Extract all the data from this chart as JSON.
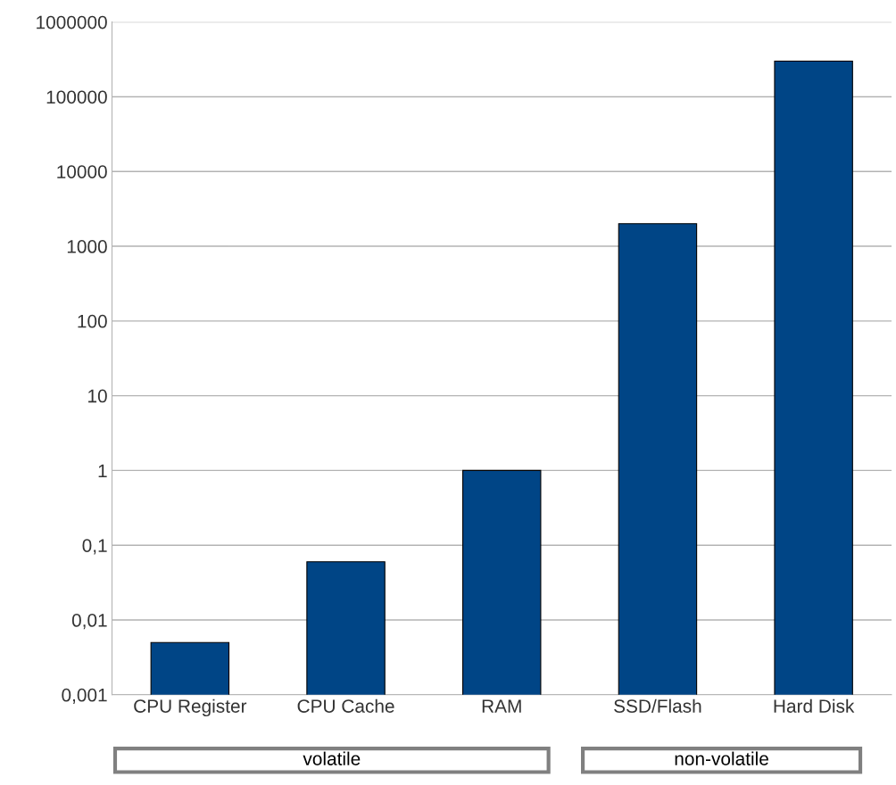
{
  "chart_data": {
    "type": "bar",
    "categories": [
      "CPU Register",
      "CPU Cache",
      "RAM",
      "SSD/Flash",
      "Hard Disk"
    ],
    "values": [
      0.005,
      0.06,
      1,
      2000,
      300000
    ],
    "color": "#004586",
    "log": true,
    "ylim": [
      0.001,
      1000000
    ],
    "yticks": [
      {
        "value": 0.001,
        "label": "0,001"
      },
      {
        "value": 0.01,
        "label": "0,01"
      },
      {
        "value": 0.1,
        "label": "0,1"
      },
      1,
      10,
      100,
      1000,
      10000,
      100000,
      1000000
    ],
    "grid": "y",
    "annotations": [
      "volatile",
      "non-volatile"
    ]
  }
}
